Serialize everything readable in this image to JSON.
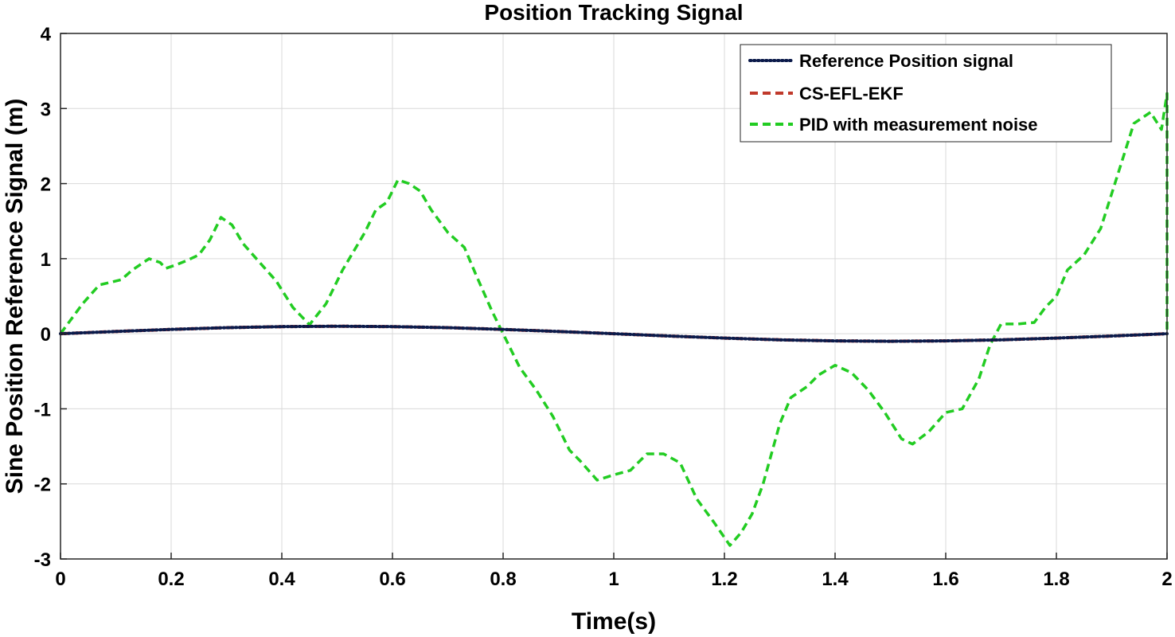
{
  "chart_data": {
    "type": "line",
    "title": "Position Tracking Signal",
    "xlabel": "Time(s)",
    "ylabel": "Sine Position Reference Signal (m)",
    "xlim": [
      0,
      2
    ],
    "ylim": [
      -3,
      4
    ],
    "xticks": [
      0,
      0.2,
      0.4,
      0.6,
      0.8,
      1,
      1.2,
      1.4,
      1.6,
      1.8,
      2
    ],
    "xtick_labels": [
      "0",
      "0.2",
      "0.4",
      "0.6",
      "0.8",
      "1",
      "1.2",
      "1.4",
      "1.6",
      "1.8",
      "2"
    ],
    "yticks": [
      -3,
      -2,
      -1,
      0,
      1,
      2,
      3,
      4
    ],
    "ytick_labels": [
      "-3",
      "-2",
      "-1",
      "0",
      "1",
      "2",
      "3",
      "4"
    ],
    "grid": true,
    "legend_position": "top-right",
    "series": [
      {
        "name": "Reference Position signal",
        "color": "#0b1a4a",
        "style": "dotted",
        "x": [
          0,
          0.1,
          0.2,
          0.3,
          0.4,
          0.5,
          0.6,
          0.7,
          0.8,
          0.9,
          1.0,
          1.1,
          1.2,
          1.3,
          1.4,
          1.5,
          1.6,
          1.7,
          1.8,
          1.9,
          2.0
        ],
        "y": [
          0,
          0.03,
          0.058,
          0.081,
          0.095,
          0.1,
          0.095,
          0.081,
          0.058,
          0.03,
          0,
          -0.03,
          -0.058,
          -0.081,
          -0.095,
          -0.1,
          -0.095,
          -0.081,
          -0.058,
          -0.03,
          0
        ]
      },
      {
        "name": "CS-EFL-EKF",
        "color": "#c0392b",
        "style": "dashed",
        "x": [
          0,
          0.1,
          0.2,
          0.3,
          0.4,
          0.5,
          0.6,
          0.7,
          0.8,
          0.9,
          1.0,
          1.1,
          1.2,
          1.3,
          1.4,
          1.5,
          1.6,
          1.7,
          1.8,
          1.9,
          2.0
        ],
        "y": [
          0,
          0.03,
          0.058,
          0.081,
          0.095,
          0.1,
          0.095,
          0.081,
          0.058,
          0.03,
          0,
          -0.03,
          -0.058,
          -0.081,
          -0.095,
          -0.1,
          -0.095,
          -0.081,
          -0.058,
          -0.03,
          0
        ]
      },
      {
        "name": "PID with measurement noise",
        "color": "#22cc22",
        "style": "dashed",
        "x": [
          0,
          0.02,
          0.04,
          0.07,
          0.11,
          0.13,
          0.16,
          0.18,
          0.19,
          0.21,
          0.23,
          0.25,
          0.27,
          0.29,
          0.31,
          0.33,
          0.36,
          0.39,
          0.42,
          0.45,
          0.48,
          0.51,
          0.55,
          0.57,
          0.59,
          0.61,
          0.63,
          0.65,
          0.67,
          0.7,
          0.73,
          0.75,
          0.78,
          0.8,
          0.83,
          0.86,
          0.89,
          0.92,
          0.94,
          0.97,
          1.0,
          1.03,
          1.06,
          1.09,
          1.12,
          1.15,
          1.18,
          1.21,
          1.23,
          1.25,
          1.27,
          1.3,
          1.32,
          1.35,
          1.37,
          1.4,
          1.43,
          1.46,
          1.49,
          1.52,
          1.54,
          1.57,
          1.6,
          1.63,
          1.66,
          1.68,
          1.7,
          1.73,
          1.76,
          1.78,
          1.8,
          1.82,
          1.85,
          1.88,
          1.91,
          1.94,
          1.97,
          1.99,
          2.0,
          2.0
        ],
        "y": [
          0,
          0.2,
          0.4,
          0.65,
          0.72,
          0.85,
          1.0,
          0.95,
          0.87,
          0.92,
          0.98,
          1.05,
          1.25,
          1.55,
          1.45,
          1.2,
          0.95,
          0.7,
          0.35,
          0.12,
          0.4,
          0.85,
          1.35,
          1.65,
          1.75,
          2.05,
          2.0,
          1.9,
          1.65,
          1.35,
          1.15,
          0.8,
          0.3,
          0.0,
          -0.45,
          -0.75,
          -1.1,
          -1.55,
          -1.7,
          -1.95,
          -1.88,
          -1.82,
          -1.6,
          -1.6,
          -1.72,
          -2.2,
          -2.5,
          -2.82,
          -2.65,
          -2.4,
          -2.0,
          -1.2,
          -0.85,
          -0.7,
          -0.55,
          -0.42,
          -0.52,
          -0.75,
          -1.05,
          -1.4,
          -1.47,
          -1.3,
          -1.05,
          -1.0,
          -0.6,
          -0.15,
          0.13,
          0.13,
          0.15,
          0.35,
          0.5,
          0.85,
          1.05,
          1.4,
          2.1,
          2.8,
          2.95,
          2.72,
          3.2,
          0.0
        ]
      }
    ]
  }
}
